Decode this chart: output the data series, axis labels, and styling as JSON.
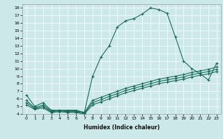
{
  "xlabel": "Humidex (Indice chaleur)",
  "bg_color": "#cce8e8",
  "line_color": "#1a6b5a",
  "xlim": [
    -0.5,
    23.5
  ],
  "ylim": [
    4,
    18.5
  ],
  "xticks": [
    0,
    1,
    2,
    3,
    4,
    5,
    6,
    7,
    8,
    9,
    10,
    11,
    12,
    13,
    14,
    15,
    16,
    17,
    18,
    19,
    20,
    21,
    22,
    23
  ],
  "yticks": [
    4,
    5,
    6,
    7,
    8,
    9,
    10,
    11,
    12,
    13,
    14,
    15,
    16,
    17,
    18
  ],
  "lines": [
    {
      "x": [
        0,
        1,
        2,
        3,
        4,
        5,
        6,
        7,
        8,
        9,
        10,
        11,
        12,
        13,
        14,
        15,
        16,
        17,
        18,
        19,
        20,
        21,
        22,
        23
      ],
      "y": [
        6.5,
        5.0,
        5.5,
        4.5,
        4.5,
        4.5,
        4.5,
        4.2,
        9.0,
        11.5,
        13.0,
        15.5,
        16.3,
        16.6,
        17.2,
        18.0,
        17.8,
        17.3,
        14.2,
        11.0,
        10.0,
        9.3,
        8.5,
        10.7
      ]
    },
    {
      "x": [
        0,
        1,
        2,
        3,
        4,
        5,
        6,
        7,
        8,
        9,
        10,
        11,
        12,
        13,
        14,
        15,
        16,
        17,
        18,
        19,
        20,
        21,
        22,
        23
      ],
      "y": [
        5.8,
        4.8,
        5.2,
        4.4,
        4.5,
        4.4,
        4.4,
        4.2,
        5.8,
        6.2,
        6.6,
        7.0,
        7.4,
        7.7,
        8.0,
        8.3,
        8.6,
        8.8,
        9.0,
        9.2,
        9.5,
        9.7,
        9.9,
        10.2
      ]
    },
    {
      "x": [
        0,
        1,
        2,
        3,
        4,
        5,
        6,
        7,
        8,
        9,
        10,
        11,
        12,
        13,
        14,
        15,
        16,
        17,
        18,
        19,
        20,
        21,
        22,
        23
      ],
      "y": [
        5.5,
        4.7,
        5.0,
        4.3,
        4.4,
        4.3,
        4.3,
        4.1,
        5.5,
        5.9,
        6.3,
        6.7,
        7.1,
        7.4,
        7.7,
        8.0,
        8.3,
        8.5,
        8.7,
        8.9,
        9.2,
        9.4,
        9.6,
        9.9
      ]
    },
    {
      "x": [
        0,
        1,
        2,
        3,
        4,
        5,
        6,
        7,
        8,
        9,
        10,
        11,
        12,
        13,
        14,
        15,
        16,
        17,
        18,
        19,
        20,
        21,
        22,
        23
      ],
      "y": [
        5.2,
        4.6,
        4.8,
        4.2,
        4.3,
        4.2,
        4.2,
        4.0,
        5.2,
        5.6,
        6.0,
        6.4,
        6.8,
        7.1,
        7.4,
        7.7,
        8.0,
        8.2,
        8.4,
        8.6,
        8.9,
        9.1,
        9.3,
        9.6
      ]
    }
  ]
}
